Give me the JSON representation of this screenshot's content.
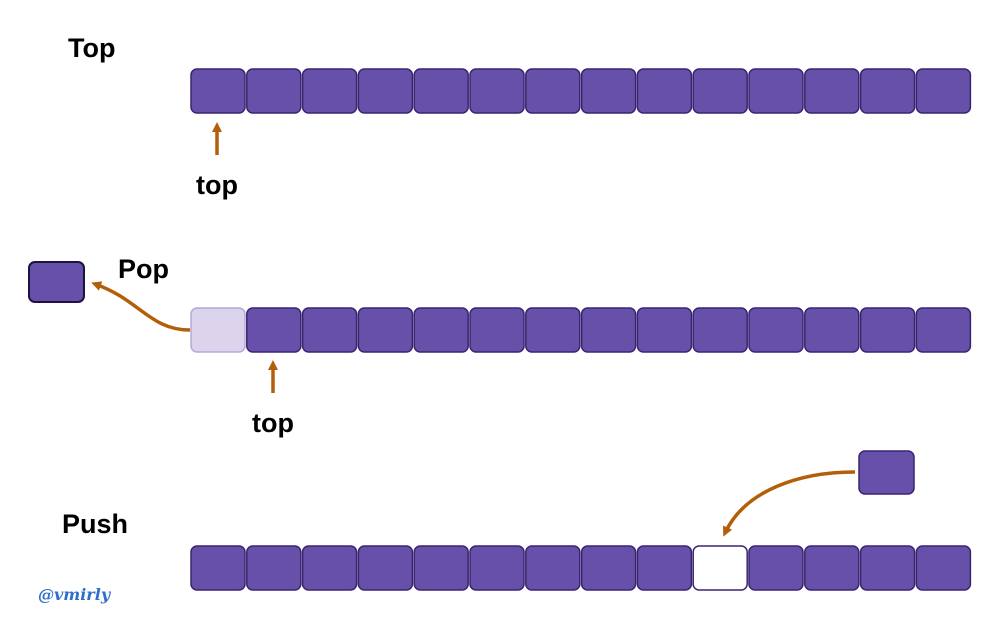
{
  "colors": {
    "cell_fill": "#6750aa",
    "cell_stroke": "#3a2470",
    "popped_fill": "#dcd3ec",
    "popped_stroke": "#b8a8d8",
    "empty_fill": "#ffffff",
    "arrow": "#b35f0a",
    "watermark": "#2f6fc9"
  },
  "panels": {
    "top": {
      "title": "Top",
      "pointer_label": "top",
      "cell_count": 14,
      "pointer_index": 0
    },
    "pop": {
      "title": "Pop",
      "pointer_label": "top",
      "cell_count": 14,
      "popped_index": 0,
      "pointer_index": 1
    },
    "push": {
      "title": "Push",
      "cell_count": 14,
      "empty_index": 9
    }
  },
  "watermark": "@vmirly"
}
